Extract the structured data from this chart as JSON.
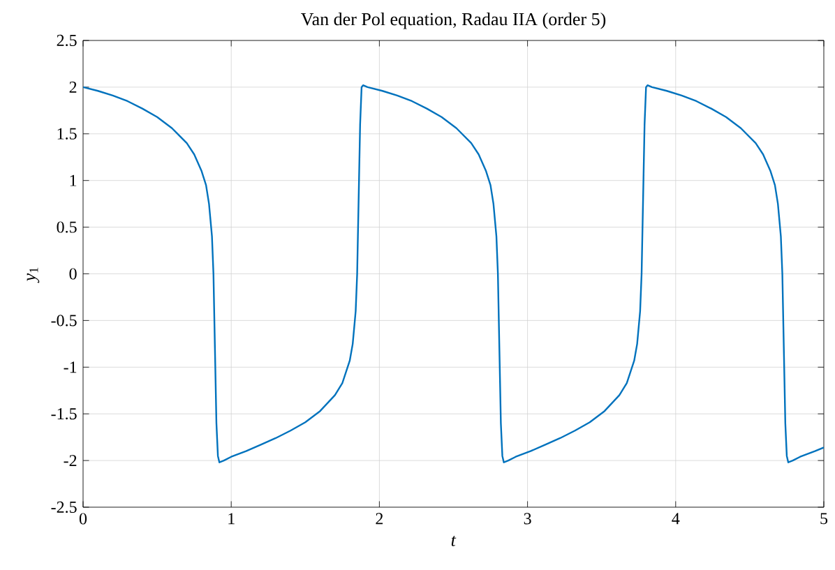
{
  "chart_data": {
    "type": "line",
    "title": "Van der Pol equation, Radau IIA (order 5)",
    "xlabel": "*t*",
    "ylabel": "*y*$_{1}$",
    "xlim": [
      0,
      5
    ],
    "ylim": [
      -2.5,
      2.5
    ],
    "xticks": [
      0,
      1,
      2,
      3,
      4,
      5
    ],
    "yticks": [
      -2.5,
      -2,
      -1.5,
      -1,
      -0.5,
      0,
      0.5,
      1,
      1.5,
      2,
      2.5
    ],
    "grid": true,
    "series": [
      {
        "color": "#0072bd",
        "x": [
          0,
          0.1,
          0.2,
          0.3,
          0.4,
          0.5,
          0.6,
          0.7,
          0.75,
          0.8,
          0.83,
          0.85,
          0.87,
          0.88,
          0.89,
          0.9,
          0.91,
          0.92,
          0.95,
          1.0,
          1.1,
          1.2,
          1.3,
          1.4,
          1.5,
          1.6,
          1.7,
          1.75,
          1.8,
          1.82,
          1.84,
          1.85,
          1.86,
          1.87,
          1.88,
          1.89,
          1.92,
          2.02,
          2.12,
          2.22,
          2.32,
          2.42,
          2.52,
          2.62,
          2.67,
          2.72,
          2.75,
          2.77,
          2.79,
          2.8,
          2.81,
          2.82,
          2.83,
          2.84,
          2.87,
          2.92,
          3.02,
          3.12,
          3.22,
          3.32,
          3.42,
          3.52,
          3.62,
          3.67,
          3.72,
          3.74,
          3.76,
          3.77,
          3.78,
          3.79,
          3.8,
          3.81,
          3.84,
          3.94,
          4.04,
          4.14,
          4.24,
          4.34,
          4.44,
          4.54,
          4.59,
          4.64,
          4.67,
          4.69,
          4.71,
          4.72,
          4.73,
          4.74,
          4.75,
          4.76,
          4.79,
          4.84,
          4.94,
          5.0
        ],
        "values": [
          2,
          1.96,
          1.91,
          1.85,
          1.77,
          1.68,
          1.56,
          1.4,
          1.28,
          1.1,
          0.95,
          0.75,
          0.4,
          0,
          -0.8,
          -1.6,
          -1.95,
          -2.02,
          -2.0,
          -1.96,
          -1.9,
          -1.83,
          -1.76,
          -1.68,
          -1.59,
          -1.47,
          -1.3,
          -1.17,
          -0.93,
          -0.75,
          -0.4,
          0,
          0.8,
          1.6,
          2.0,
          2.02,
          2,
          1.96,
          1.91,
          1.85,
          1.77,
          1.68,
          1.56,
          1.4,
          1.28,
          1.1,
          0.95,
          0.75,
          0.4,
          0,
          -0.8,
          -1.6,
          -1.95,
          -2.02,
          -2.0,
          -1.96,
          -1.9,
          -1.83,
          -1.76,
          -1.68,
          -1.59,
          -1.47,
          -1.3,
          -1.17,
          -0.93,
          -0.75,
          -0.4,
          0,
          0.8,
          1.6,
          2.0,
          2.02,
          2,
          1.96,
          1.91,
          1.85,
          1.77,
          1.68,
          1.56,
          1.4,
          1.28,
          1.1,
          0.95,
          0.75,
          0.4,
          0,
          -0.8,
          -1.6,
          -1.95,
          -2.02,
          -2.0,
          -1.96,
          -1.9,
          -1.86
        ]
      }
    ]
  }
}
